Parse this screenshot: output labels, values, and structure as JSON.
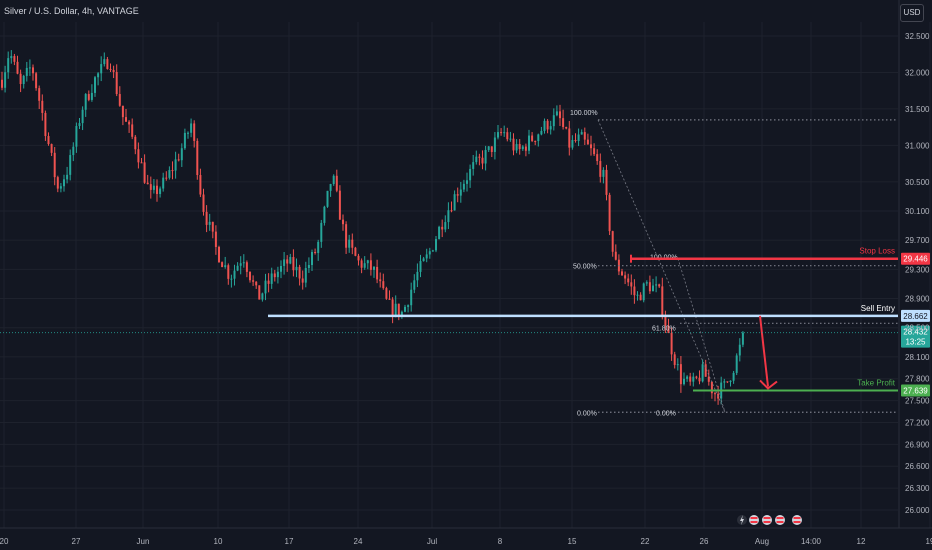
{
  "header": {
    "symbol_title": "Silver / U.S. Dollar, 4h, VANTAGE",
    "currency_button": "USD"
  },
  "colors": {
    "background": "#131722",
    "grid": "#1e222d",
    "axis_text": "#b2b5be",
    "bull": "#26a69a",
    "bear": "#ef5350",
    "stop_loss": "#f23645",
    "sell_entry": "#bfe0ff",
    "take_profit": "#4caf50",
    "fib": "#787b86"
  },
  "chart_data": {
    "type": "candlestick",
    "title": "Silver / U.S. Dollar, 4h, VANTAGE",
    "y_axis": {
      "range": [
        25.9,
        32.7
      ],
      "ticks": [
        32.5,
        32.0,
        31.5,
        31.0,
        30.5,
        30.1,
        29.7,
        29.3,
        28.9,
        28.5,
        28.1,
        27.8,
        27.5,
        27.2,
        26.9,
        26.6,
        26.3,
        26.0
      ],
      "tick_labels": [
        "32.500",
        "32.000",
        "31.500",
        "31.000",
        "30.500",
        "30.100",
        "29.700",
        "29.300",
        "28.900",
        "28.500",
        "28.100",
        "27.800",
        "27.500",
        "27.200",
        "26.900",
        "26.600",
        "26.300",
        "26.000"
      ]
    },
    "x_axis": {
      "tick_labels": [
        "20",
        "27",
        "Jun",
        "10",
        "17",
        "24",
        "Jul",
        "8",
        "15",
        "22",
        "26",
        "Aug",
        "14:00",
        "12",
        "19"
      ]
    },
    "price_path": [
      [
        0,
        31.9
      ],
      [
        0.4,
        32.3
      ],
      [
        1.0,
        31.8
      ],
      [
        1.6,
        32.1
      ],
      [
        2.2,
        31.4
      ],
      [
        3.0,
        30.4
      ],
      [
        3.6,
        30.7
      ],
      [
        4.3,
        31.5
      ],
      [
        5.0,
        31.9
      ],
      [
        5.8,
        32.2
      ],
      [
        6.5,
        31.4
      ],
      [
        7.2,
        31.0
      ],
      [
        8.0,
        30.3
      ],
      [
        8.8,
        30.5
      ],
      [
        9.6,
        30.9
      ],
      [
        10.2,
        31.3
      ],
      [
        10.8,
        30.2
      ],
      [
        11.5,
        29.6
      ],
      [
        12.3,
        29.2
      ],
      [
        13.0,
        29.5
      ],
      [
        13.8,
        28.9
      ],
      [
        14.6,
        29.2
      ],
      [
        15.4,
        29.4
      ],
      [
        16.2,
        29.2
      ],
      [
        17.0,
        29.6
      ],
      [
        17.8,
        30.6
      ],
      [
        18.5,
        29.7
      ],
      [
        19.2,
        29.4
      ],
      [
        20.0,
        29.3
      ],
      [
        20.8,
        28.8
      ],
      [
        21.6,
        28.7
      ],
      [
        22.3,
        29.2
      ],
      [
        23.0,
        29.5
      ],
      [
        23.8,
        30.0
      ],
      [
        24.6,
        30.4
      ],
      [
        25.4,
        30.7
      ],
      [
        26.2,
        30.9
      ],
      [
        27.0,
        31.2
      ],
      [
        27.8,
        30.9
      ],
      [
        28.6,
        31.1
      ],
      [
        29.4,
        31.3
      ],
      [
        30.0,
        31.4
      ],
      [
        30.6,
        31.0
      ],
      [
        31.2,
        31.1
      ],
      [
        31.8,
        30.9
      ],
      [
        32.4,
        30.6
      ],
      [
        33.0,
        29.4
      ],
      [
        33.6,
        29.2
      ],
      [
        34.2,
        28.9
      ],
      [
        34.8,
        29.1
      ],
      [
        35.4,
        29.0
      ],
      [
        36.0,
        28.3
      ],
      [
        36.6,
        27.8
      ],
      [
        37.2,
        27.7
      ],
      [
        37.8,
        27.9
      ],
      [
        38.4,
        27.6
      ],
      [
        39.0,
        27.7
      ],
      [
        39.5,
        28.0
      ],
      [
        40.0,
        28.4
      ]
    ],
    "fib_levels": [
      {
        "label": "100.00%",
        "value": 31.35
      },
      {
        "label": "50.00%",
        "value": 29.35
      },
      {
        "label": "100.00%",
        "value": 29.446
      },
      {
        "label": "61.80%",
        "value": 28.56
      },
      {
        "label": "0.00%",
        "value": 27.34
      },
      {
        "label": "0.00%",
        "value": 27.34
      }
    ],
    "annotations": [
      {
        "label": "Stop Loss",
        "value": 29.446,
        "price_label": "29.446"
      },
      {
        "label": "Sell Entry",
        "value": 28.662,
        "price_label": "28.662"
      },
      {
        "label": "Take Profit",
        "value": 27.639,
        "price_label": "27.639"
      }
    ],
    "last_price": {
      "value": 28.432,
      "price_label": "28.432",
      "countdown": "13:25"
    },
    "legend": "none",
    "grid": true
  }
}
